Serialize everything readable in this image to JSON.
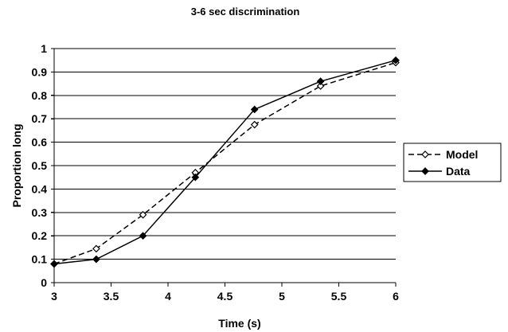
{
  "chart_data": {
    "type": "line",
    "title": "3-6 sec discrimination",
    "xlabel": "Time (s)",
    "ylabel": "Proportion long",
    "xlim": [
      3,
      6
    ],
    "ylim": [
      0,
      1
    ],
    "x_ticks": [
      "3",
      "3.5",
      "4",
      "4.5",
      "5",
      "5.5",
      "6"
    ],
    "y_ticks": [
      "0",
      "0.1",
      "0.2",
      "0.3",
      "0.4",
      "0.5",
      "0.6",
      "0.7",
      "0.8",
      "0.9",
      "1"
    ],
    "grid": "horizontal",
    "legend_position": "right",
    "series": [
      {
        "name": "Model",
        "style": "dashed",
        "marker": "open-diamond",
        "color": "#000000",
        "x": [
          3,
          3.37,
          3.78,
          4.24,
          4.76,
          5.34,
          6
        ],
        "y": [
          0.08,
          0.145,
          0.29,
          0.47,
          0.675,
          0.84,
          0.94
        ]
      },
      {
        "name": "Data",
        "style": "solid",
        "marker": "filled-diamond",
        "color": "#000000",
        "x": [
          3,
          3.37,
          3.78,
          4.24,
          4.76,
          5.34,
          6
        ],
        "y": [
          0.08,
          0.1,
          0.2,
          0.45,
          0.74,
          0.86,
          0.95
        ]
      }
    ]
  }
}
